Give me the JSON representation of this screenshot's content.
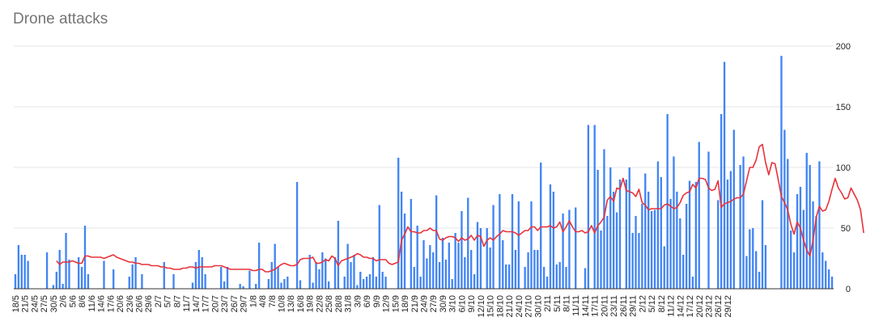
{
  "chart_data": {
    "type": "bar",
    "title": "Drone attacks",
    "xlabel": "",
    "ylabel": "",
    "ylim": [
      0,
      200
    ],
    "y_ticks": [
      0,
      50,
      100,
      150,
      200
    ],
    "y_axis_position": "right",
    "grid": true,
    "legend": "none",
    "x_labels": [
      "18/5",
      "21/5",
      "24/5",
      "27/5",
      "30/5",
      "2/6",
      "5/6",
      "8/6",
      "11/6",
      "14/6",
      "17/6",
      "20/6",
      "23/6",
      "26/6",
      "29/6",
      "2/7",
      "5/7",
      "8/7",
      "11/7",
      "14/7",
      "17/7",
      "20/7",
      "23/7",
      "26/7",
      "29/7",
      "1/8",
      "4/8",
      "7/8",
      "10/8",
      "13/8",
      "16/8",
      "19/8",
      "22/8",
      "25/8",
      "28/8",
      "31/8",
      "3/9",
      "6/9",
      "9/9",
      "12/9",
      "15/9",
      "18/9",
      "21/9",
      "24/9",
      "27/9",
      "30/9",
      "3/10",
      "6/10",
      "9/10",
      "12/10",
      "15/10",
      "18/10",
      "21/10",
      "24/10",
      "27/10",
      "30/10",
      "2/11",
      "5/11",
      "8/11",
      "11/11",
      "14/11",
      "17/11",
      "20/11",
      "23/11",
      "26/11",
      "29/11",
      "2/12",
      "5/12",
      "8/12",
      "11/12",
      "14/12",
      "17/12",
      "20/12",
      "23/12",
      "26/12",
      "29/12"
    ],
    "series": [
      {
        "type": "bar",
        "color": "#4285f4",
        "values": [
          12,
          36,
          28,
          28,
          23,
          0,
          0,
          0,
          0,
          0,
          30,
          0,
          3,
          14,
          32,
          4,
          46,
          24,
          0,
          0,
          26,
          18,
          52,
          12,
          0,
          0,
          0,
          0,
          23,
          0,
          0,
          16,
          0,
          0,
          0,
          0,
          10,
          20,
          26,
          0,
          12,
          0,
          0,
          0,
          0,
          0,
          0,
          22,
          0,
          0,
          12,
          0,
          0,
          0,
          0,
          0,
          5,
          22,
          32,
          26,
          12,
          0,
          0,
          0,
          0,
          18,
          6,
          18,
          0,
          0,
          0,
          4,
          2,
          0,
          15,
          0,
          4,
          38,
          0,
          0,
          8,
          22,
          37,
          18,
          5,
          8,
          10,
          0,
          0,
          88,
          7,
          0,
          0,
          28,
          5,
          22,
          16,
          30,
          25,
          6,
          0,
          26,
          56,
          0,
          10,
          37,
          22,
          28,
          3,
          14,
          8,
          10,
          12,
          26,
          10,
          69,
          14,
          10,
          0,
          0,
          0,
          108,
          80,
          62,
          0,
          74,
          18,
          52,
          10,
          40,
          25,
          36,
          30,
          77,
          22,
          42,
          24,
          38,
          8,
          46,
          38,
          64,
          26,
          75,
          32,
          12,
          55,
          50,
          0,
          50,
          34,
          69,
          0,
          78,
          40,
          20,
          20,
          78,
          32,
          72,
          0,
          18,
          30,
          72,
          32,
          32,
          104,
          18,
          10,
          86,
          80,
          20,
          22,
          62,
          18,
          65,
          0,
          67,
          0,
          0,
          17,
          135,
          0,
          135,
          98,
          48,
          115,
          60,
          100,
          80,
          63,
          90,
          0,
          90,
          100,
          46,
          60,
          46,
          70,
          95,
          80,
          64,
          65,
          105,
          92,
          35,
          144,
          74,
          109,
          80,
          58,
          28,
          70,
          89,
          10,
          88,
          121,
          0,
          0,
          113,
          0,
          0,
          73,
          144,
          187,
          90,
          97,
          131,
          0,
          102,
          109,
          27,
          49,
          50,
          31,
          14,
          73,
          36,
          0,
          0,
          0,
          0,
          192,
          131,
          107,
          48,
          30,
          78,
          84,
          65,
          112,
          102,
          72,
          60,
          105,
          30,
          23,
          16,
          10
        ]
      },
      {
        "type": "line",
        "color": "#e8323a",
        "values": [
          null,
          null,
          null,
          null,
          null,
          null,
          null,
          null,
          null,
          null,
          null,
          null,
          null,
          23,
          20,
          22,
          22,
          22,
          23,
          22,
          21,
          21,
          27,
          27,
          26,
          26,
          26,
          26,
          25,
          26,
          27,
          28,
          26,
          25,
          24,
          23,
          22,
          22,
          21,
          21,
          20,
          20,
          20,
          19,
          19,
          19,
          18,
          18,
          17,
          17,
          16,
          16,
          16,
          17,
          17,
          18,
          18,
          17,
          18,
          18,
          18,
          18,
          18,
          19,
          19,
          19,
          18,
          17,
          16,
          16,
          16,
          16,
          16,
          16,
          16,
          15,
          15,
          16,
          16,
          14,
          14,
          15,
          16,
          18,
          20,
          21,
          20,
          19,
          19,
          20,
          24,
          25,
          25,
          25,
          26,
          21,
          21,
          22,
          24,
          23,
          27,
          25,
          19,
          23,
          24,
          25,
          26,
          27,
          29,
          28,
          26,
          26,
          25,
          25,
          23,
          24,
          24,
          24,
          21,
          20,
          21,
          22,
          40,
          45,
          51,
          47,
          47,
          46,
          46,
          48,
          48,
          50,
          48,
          48,
          41,
          40,
          42,
          43,
          43,
          42,
          39,
          42,
          40,
          41,
          44,
          40,
          44,
          43,
          35,
          40,
          42,
          40,
          43,
          45,
          48,
          47,
          47,
          47,
          46,
          44,
          46,
          48,
          48,
          51,
          51,
          48,
          51,
          51,
          51,
          52,
          50,
          51,
          55,
          47,
          51,
          56,
          51,
          47,
          47,
          48,
          46,
          47,
          52,
          46,
          52,
          55,
          59,
          73,
          76,
          72,
          83,
          82,
          91,
          81,
          80,
          79,
          76,
          82,
          71,
          69,
          65,
          66,
          66,
          66,
          66,
          69,
          70,
          68,
          66,
          67,
          71,
          77,
          79,
          80,
          86,
          83,
          91,
          91,
          90,
          83,
          81,
          82,
          89,
          67,
          70,
          71,
          72,
          74,
          75,
          75,
          78,
          89,
          100,
          100,
          106,
          117,
          119,
          104,
          94,
          104,
          103,
          90,
          76,
          71,
          65,
          53,
          45,
          55,
          50,
          40,
          32,
          27,
          40,
          59,
          68,
          64,
          65,
          72,
          82,
          91,
          83,
          79,
          74,
          75,
          83,
          78,
          73,
          65,
          46
        ]
      }
    ]
  }
}
